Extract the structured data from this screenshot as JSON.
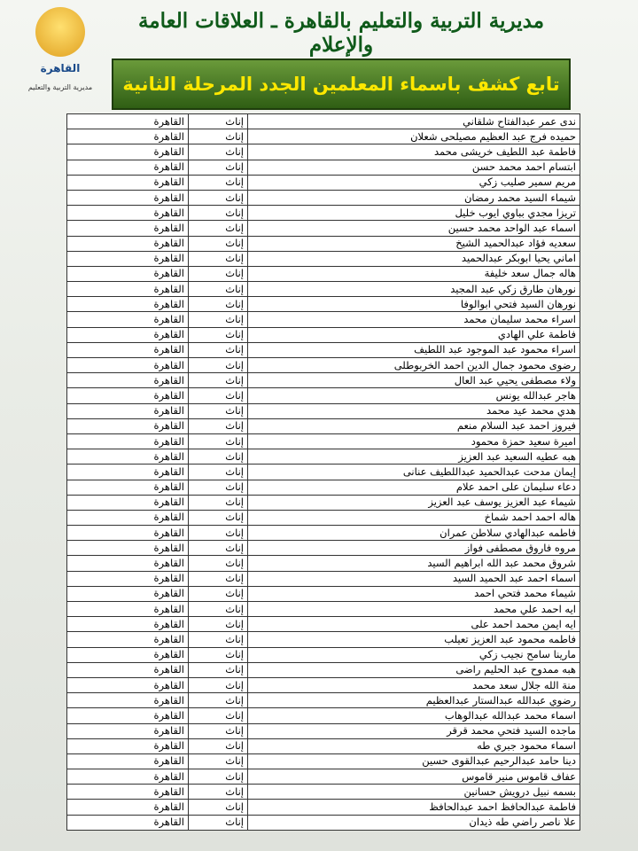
{
  "header": {
    "title": "مديرية التربية والتعليم بالقاهرة ـ العلاقات العامة والإعلام",
    "subtitle": "تابع كشف باسماء المعلمين الجدد المرحلة الثانية"
  },
  "logo": {
    "label": "القاهرة",
    "caption": "مديرية التربية والتعليم"
  },
  "table": {
    "rows": [
      [
        "ندى عمر عبدالفتاح شلقاني",
        "إناث",
        "القاهرة"
      ],
      [
        "حميده فرج عبد العظيم مصيلحى شعلان",
        "إناث",
        "القاهرة"
      ],
      [
        "فاطمة عبد اللطيف خريشى محمد",
        "إناث",
        "القاهرة"
      ],
      [
        "ابتسام احمد محمد حسن",
        "إناث",
        "القاهرة"
      ],
      [
        "مريم سمير صليب زكي",
        "إناث",
        "القاهرة"
      ],
      [
        "شيماء السيد محمد رمضان",
        "إناث",
        "القاهرة"
      ],
      [
        "تريزا مجدي بباوي ايوب خليل",
        "إناث",
        "القاهرة"
      ],
      [
        "اسماء عبد الواحد محمد حسين",
        "إناث",
        "القاهرة"
      ],
      [
        "سعديه فؤاد عبدالحميد الشيخ",
        "إناث",
        "القاهرة"
      ],
      [
        "اماني يحيا ابوبكر عبدالحميد",
        "إناث",
        "القاهرة"
      ],
      [
        "هاله جمال سعد خليفة",
        "إناث",
        "القاهرة"
      ],
      [
        "نورهان طارق زكي عبد المجيد",
        "إناث",
        "القاهرة"
      ],
      [
        "نورهان السيد فتحي ابوالوفا",
        "إناث",
        "القاهرة"
      ],
      [
        "اسراء محمد سليمان محمد",
        "إناث",
        "القاهرة"
      ],
      [
        "فاطمة علي الهادي",
        "إناث",
        "القاهرة"
      ],
      [
        "اسراء محمود عبد الموجود عبد اللطيف",
        "إناث",
        "القاهرة"
      ],
      [
        "رضوى محمود جمال الدين احمد الخربوطلى",
        "إناث",
        "القاهرة"
      ],
      [
        "ولاء مصطفى يحيي عبد العال",
        "إناث",
        "القاهرة"
      ],
      [
        "هاجر عبدالله يونس",
        "إناث",
        "القاهرة"
      ],
      [
        "هدي محمد عيد محمد",
        "إناث",
        "القاهرة"
      ],
      [
        "فيروز احمد عبد السلام منعم",
        "إناث",
        "القاهرة"
      ],
      [
        "اميرة سعيد حمزة محمود",
        "إناث",
        "القاهرة"
      ],
      [
        "هبه عطيه السعيد عبد العزيز",
        "إناث",
        "القاهرة"
      ],
      [
        "إيمان مدحت عبدالحميد عبداللطيف عنانى",
        "إناث",
        "القاهرة"
      ],
      [
        "دعاء سليمان على احمد علام",
        "إناث",
        "القاهرة"
      ],
      [
        "شيماء عبد العزيز يوسف عبد العزيز",
        "إناث",
        "القاهرة"
      ],
      [
        "هاله احمد احمد شماخ",
        "إناث",
        "القاهرة"
      ],
      [
        "فاطمه عبدالهادي سلاطن عمران",
        "إناث",
        "القاهرة"
      ],
      [
        "مروه فاروق مصطفى فواز",
        "إناث",
        "القاهرة"
      ],
      [
        "شروق محمد عبد الله ابراهيم السيد",
        "إناث",
        "القاهرة"
      ],
      [
        "اسماء احمد عبد الحميد السيد",
        "إناث",
        "القاهرة"
      ],
      [
        "شيماء محمد فتحي احمد",
        "إناث",
        "القاهرة"
      ],
      [
        "ايه احمد علي محمد",
        "إناث",
        "القاهرة"
      ],
      [
        "ايه ايمن محمد احمد على",
        "إناث",
        "القاهرة"
      ],
      [
        "فاطمه محمود عبد العزيز تعيلب",
        "إناث",
        "القاهرة"
      ],
      [
        "مارينا سامح نجيب زكي",
        "إناث",
        "القاهرة"
      ],
      [
        "هبه ممدوح عبد الحليم راضى",
        "إناث",
        "القاهرة"
      ],
      [
        "منة الله جلال سعد محمد",
        "إناث",
        "القاهرة"
      ],
      [
        "رضوي عبدالله عبدالستار عبدالعظيم",
        "إناث",
        "القاهرة"
      ],
      [
        "اسماء محمد عبدالله عبدالوهاب",
        "إناث",
        "القاهرة"
      ],
      [
        "ماجده السيد فتحي محمد قرقر",
        "إناث",
        "القاهرة"
      ],
      [
        "اسماء محمود جبري طه",
        "إناث",
        "القاهرة"
      ],
      [
        "دينا حامد عبدالرحيم عبدالقوى حسين",
        "إناث",
        "القاهرة"
      ],
      [
        "عفاف قاموس منير قاموس",
        "إناث",
        "القاهرة"
      ],
      [
        "بسمه نبيل درويش حسانين",
        "إناث",
        "القاهرة"
      ],
      [
        "فاطمة عبدالحافظ احمد عبدالحافظ",
        "إناث",
        "القاهرة"
      ],
      [
        "علا ناصر راضي طه ذيدان",
        "إناث",
        "القاهرة"
      ]
    ]
  }
}
